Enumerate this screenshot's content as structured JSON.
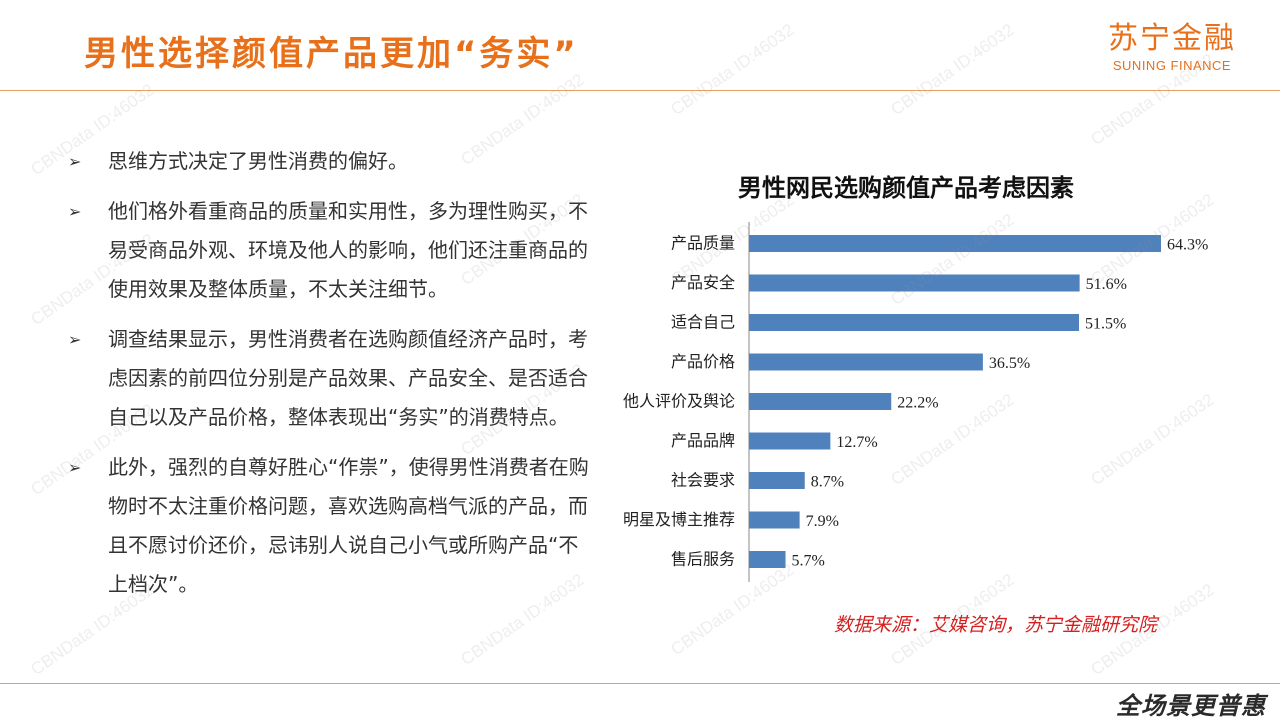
{
  "slide": {
    "title": "男性选择颜值产品更加“务实”",
    "logo_cn": "苏宁金融",
    "logo_en": "SUNING FINANCE",
    "slogan": "全场景更普惠",
    "watermark": "CBNData ID:46032"
  },
  "bullets": [
    {
      "mark": "➢",
      "text": "思维方式决定了男性消费的偏好。"
    },
    {
      "mark": "➢",
      "text": "他们格外看重商品的质量和实用性，多为理性购买，不易受商品外观、环境及他人的影响，他们还注重商品的使用效果及整体质量，不太关注细节。"
    },
    {
      "mark": "➢",
      "text": "调查结果显示，男性消费者在选购颜值经济产品时，考虑因素的前四位分别是产品效果、产品安全、是否适合自己以及产品价格，整体表现出“务实”的消费特点。"
    },
    {
      "mark": "➢",
      "text": "此外，强烈的自尊好胜心“作祟”，使得男性消费者在购物时不太注重价格问题，喜欢选购高档气派的产品，而且不愿讨价还价，忌讳别人说自己小气或所购产品“不上档次”。"
    }
  ],
  "source": "数据来源：艾媒咨询，苏宁金融研究院",
  "colors": {
    "accent": "#E8701A",
    "bar": "#4F81BD",
    "source": "#D62020"
  },
  "chart_data": {
    "type": "bar",
    "orientation": "horizontal",
    "title": "男性网民选购颜值产品考虑因素",
    "categories": [
      "产品质量",
      "产品安全",
      "适合自己",
      "产品价格",
      "他人评价及舆论",
      "产品品牌",
      "社会要求",
      "明星及博主推荐",
      "售后服务"
    ],
    "values": [
      64.3,
      51.6,
      51.5,
      36.5,
      22.2,
      12.7,
      8.7,
      7.9,
      5.7
    ],
    "value_labels": [
      "64.3%",
      "51.6%",
      "51.5%",
      "36.5%",
      "22.2%",
      "12.7%",
      "8.7%",
      "7.9%",
      "5.7%"
    ],
    "xlabel": "",
    "ylabel": "",
    "xlim": [
      0,
      64.3
    ],
    "grid": false,
    "legend": "none"
  }
}
